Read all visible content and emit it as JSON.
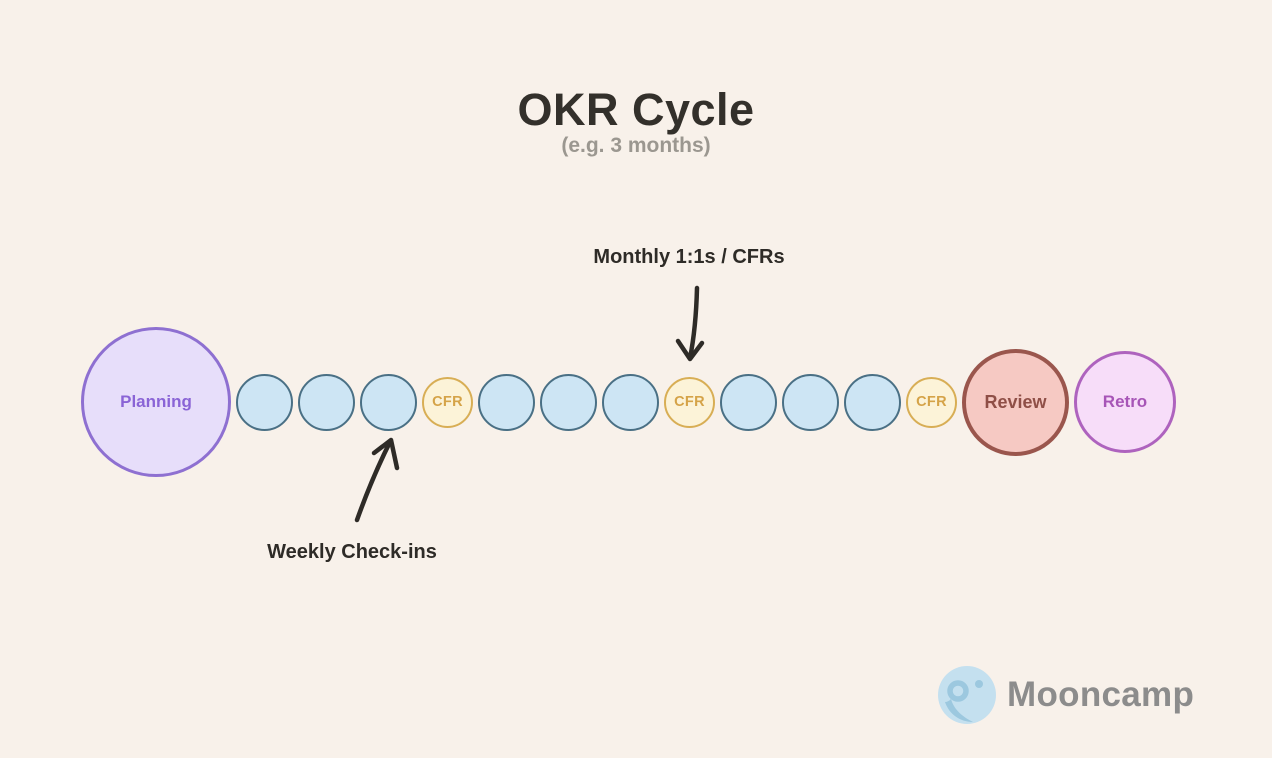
{
  "title": "OKR Cycle",
  "subtitle": "(e.g. 3 months)",
  "annotations": {
    "monthly": "Monthly 1:1s / CFRs",
    "weekly": "Weekly Check-ins"
  },
  "sequence": [
    {
      "type": "planning",
      "label": "Planning"
    },
    {
      "type": "week",
      "label": ""
    },
    {
      "type": "week",
      "label": ""
    },
    {
      "type": "week",
      "label": ""
    },
    {
      "type": "cfr",
      "label": "CFR"
    },
    {
      "type": "week",
      "label": ""
    },
    {
      "type": "week",
      "label": ""
    },
    {
      "type": "week",
      "label": ""
    },
    {
      "type": "cfr",
      "label": "CFR"
    },
    {
      "type": "week",
      "label": ""
    },
    {
      "type": "week",
      "label": ""
    },
    {
      "type": "week",
      "label": ""
    },
    {
      "type": "cfr",
      "label": "CFR"
    },
    {
      "type": "review",
      "label": "Review"
    },
    {
      "type": "retro",
      "label": "Retro"
    }
  ],
  "logo": {
    "icon": "moon-icon",
    "text": "Mooncamp"
  },
  "colors": {
    "planning_fill": "#E7DEFA",
    "planning_border": "#8E70D1",
    "planning_text": "#8A64D6",
    "week_fill": "#CDE5F4",
    "week_border": "#4A7085",
    "cfr_fill": "#FCF3D8",
    "cfr_border": "#D8AE55",
    "cfr_text": "#D5A348",
    "review_fill": "#F6C9C3",
    "review_border": "#9A564D",
    "review_text": "#8F4F47",
    "retro_fill": "#F7DDF9",
    "retro_border": "#AE63BE",
    "retro_text": "#A755B7",
    "background": "#F8F1EA",
    "ink": "#33302B",
    "muted": "#9B9790",
    "arrow": "#2E2B27",
    "logo_text": "#8C8C8C",
    "moon_light": "#C4E0EF",
    "moon_dark": "#9CC8DF"
  }
}
